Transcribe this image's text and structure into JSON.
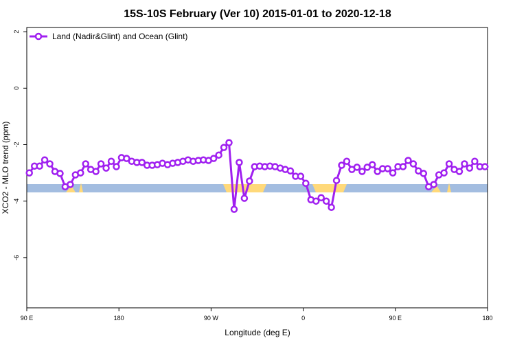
{
  "chart_data": {
    "type": "line",
    "title": "15S-10S February (Ver 10)   2015-01-01 to 2020-12-18",
    "x_label": "Longitude (deg E)",
    "y_label": "XCO2 - MLO trend (ppm)",
    "xlim": [
      90,
      540
    ],
    "ylim": [
      -7.78,
      2.15
    ],
    "xticks": [
      {
        "value": 90,
        "label": "90 E"
      },
      180,
      {
        "value": 270,
        "label": "90 W"
      },
      {
        "value": 360,
        "label": "0"
      },
      {
        "value": 450,
        "label": "90 E"
      },
      {
        "value": 540,
        "label": "180"
      }
    ],
    "yticks": [
      2,
      0,
      -2,
      -4,
      -6
    ],
    "legend_position": "top-left",
    "x": [
      92.5,
      97.5,
      102.5,
      107.5,
      112.5,
      117.5,
      122.5,
      127.5,
      132.5,
      137.5,
      142.5,
      147.5,
      152.5,
      157.5,
      162.5,
      167.5,
      172.5,
      177.5,
      182.5,
      187.5,
      192.5,
      197.5,
      202.5,
      207.5,
      212.5,
      217.5,
      222.5,
      227.5,
      232.5,
      237.5,
      242.5,
      247.5,
      252.5,
      257.5,
      262.5,
      267.5,
      272.5,
      277.5,
      282.5,
      287.5,
      292.5,
      297.5,
      302.5,
      307.5,
      312.5,
      317.5,
      322.5,
      327.5,
      332.5,
      337.5,
      342.5,
      347.5,
      352.5,
      357.5,
      362.5,
      367.5,
      372.5,
      377.5,
      382.5,
      387.5,
      392.5,
      397.5,
      402.5,
      407.5,
      412.5,
      417.5,
      422.5,
      427.5,
      432.5,
      437.5,
      442.5,
      447.5,
      452.5,
      457.5,
      462.5,
      467.5,
      472.5,
      477.5,
      482.5,
      487.5,
      492.5,
      497.5,
      502.5,
      507.5,
      512.5,
      517.5,
      522.5,
      527.5,
      532.5,
      537.5
    ],
    "series": [
      {
        "name": "Land (Nadir&Glint) and Ocean (Glint)",
        "color": "#a020f0",
        "values": [
          -3.0,
          -2.76,
          -2.76,
          -2.54,
          -2.68,
          -2.95,
          -3.02,
          -3.49,
          -3.41,
          -3.07,
          -3.0,
          -2.68,
          -2.88,
          -2.95,
          -2.68,
          -2.83,
          -2.59,
          -2.78,
          -2.46,
          -2.49,
          -2.59,
          -2.63,
          -2.63,
          -2.73,
          -2.73,
          -2.71,
          -2.66,
          -2.71,
          -2.66,
          -2.63,
          -2.59,
          -2.54,
          -2.59,
          -2.56,
          -2.54,
          -2.56,
          -2.49,
          -2.37,
          -2.1,
          -1.93,
          -4.29,
          -2.63,
          -3.9,
          -3.29,
          -2.78,
          -2.76,
          -2.78,
          -2.76,
          -2.78,
          -2.83,
          -2.88,
          -2.93,
          -3.12,
          -3.12,
          -3.37,
          -3.95,
          -4.0,
          -3.88,
          -4.0,
          -4.22,
          -3.27,
          -2.73,
          -2.59,
          -2.88,
          -2.8,
          -2.95,
          -2.8,
          -2.71,
          -2.95,
          -2.85,
          -2.85,
          -3.0,
          -2.78,
          -2.78,
          -2.56,
          -2.68,
          -2.93,
          -3.02,
          -3.49,
          -3.41,
          -3.07,
          -3.0,
          -2.68,
          -2.88,
          -2.95,
          -2.68,
          -2.83,
          -2.59,
          -2.78,
          -2.78
        ]
      }
    ]
  }
}
